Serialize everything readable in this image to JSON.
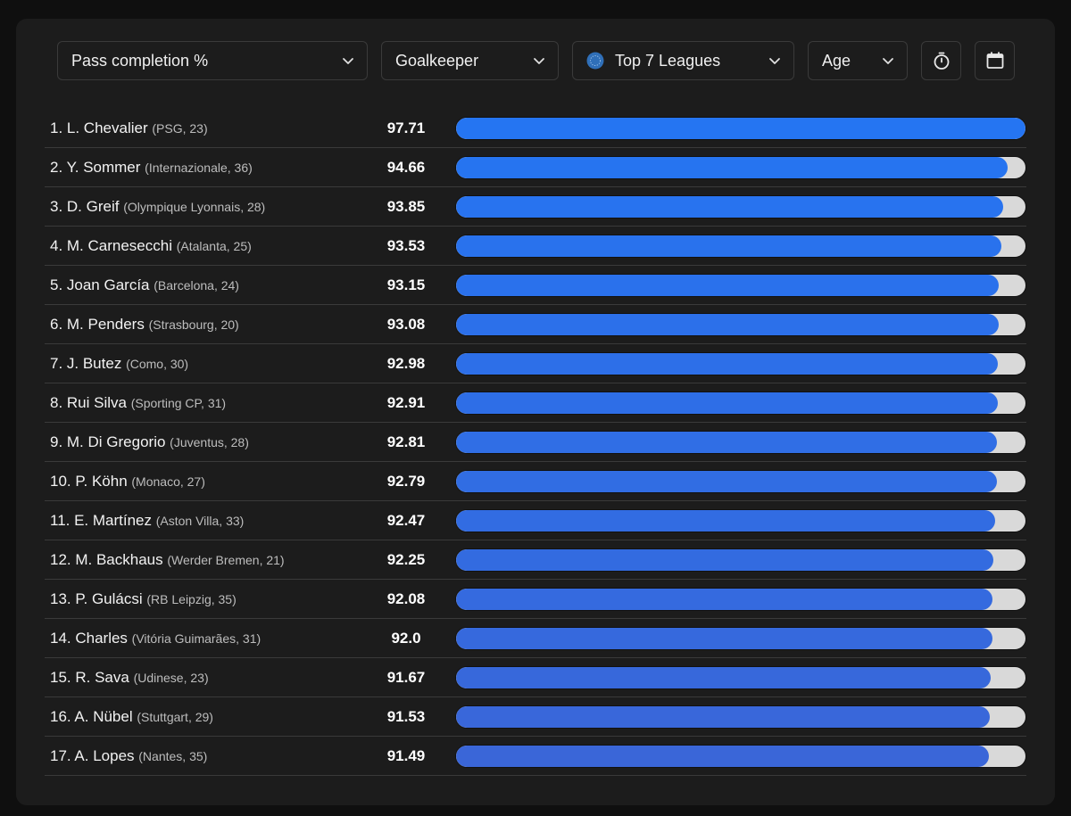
{
  "filters": {
    "metric": "Pass completion %",
    "position": "Goalkeeper",
    "competition": "Top 7 Leagues",
    "sort": "Age"
  },
  "icons": {
    "chevron": "chevron-down-icon",
    "competition": "globe-icon",
    "timer": "stopwatch-icon",
    "calendar": "calendar-icon"
  },
  "colors": {
    "bar_top": "#2575f2",
    "bar_bottom": "#3a66d8",
    "track": "#d9d9d9"
  },
  "chart_data": {
    "type": "bar",
    "orientation": "horizontal",
    "xlim": [
      0,
      97.71
    ],
    "rows": [
      {
        "label": "1. L. Chevalier",
        "meta": "(PSG, 23)",
        "value": 97.71,
        "display": "97.71"
      },
      {
        "label": "2. Y. Sommer",
        "meta": "(Internazionale, 36)",
        "value": 94.66,
        "display": "94.66"
      },
      {
        "label": "3. D. Greif",
        "meta": "(Olympique Lyonnais, 28)",
        "value": 93.85,
        "display": "93.85"
      },
      {
        "label": "4. M. Carnesecchi",
        "meta": "(Atalanta, 25)",
        "value": 93.53,
        "display": "93.53"
      },
      {
        "label": "5. Joan García",
        "meta": "(Barcelona, 24)",
        "value": 93.15,
        "display": "93.15"
      },
      {
        "label": "6. M. Penders",
        "meta": "(Strasbourg, 20)",
        "value": 93.08,
        "display": "93.08"
      },
      {
        "label": "7. J. Butez",
        "meta": "(Como, 30)",
        "value": 92.98,
        "display": "92.98"
      },
      {
        "label": "8. Rui Silva",
        "meta": "(Sporting CP, 31)",
        "value": 92.91,
        "display": "92.91"
      },
      {
        "label": "9. M. Di Gregorio",
        "meta": "(Juventus, 28)",
        "value": 92.81,
        "display": "92.81"
      },
      {
        "label": "10. P. Köhn",
        "meta": "(Monaco, 27)",
        "value": 92.79,
        "display": "92.79"
      },
      {
        "label": "11. E. Martínez",
        "meta": "(Aston Villa, 33)",
        "value": 92.47,
        "display": "92.47"
      },
      {
        "label": "12. M. Backhaus",
        "meta": "(Werder Bremen, 21)",
        "value": 92.25,
        "display": "92.25"
      },
      {
        "label": "13. P. Gulácsi",
        "meta": "(RB Leipzig, 35)",
        "value": 92.08,
        "display": "92.08"
      },
      {
        "label": "14. Charles",
        "meta": "(Vitória Guimarães, 31)",
        "value": 92.0,
        "display": "92.0"
      },
      {
        "label": "15. R. Sava",
        "meta": "(Udinese, 23)",
        "value": 91.67,
        "display": "91.67"
      },
      {
        "label": "16. A. Nübel",
        "meta": "(Stuttgart, 29)",
        "value": 91.53,
        "display": "91.53"
      },
      {
        "label": "17. A. Lopes",
        "meta": "(Nantes, 35)",
        "value": 91.49,
        "display": "91.49"
      }
    ]
  }
}
